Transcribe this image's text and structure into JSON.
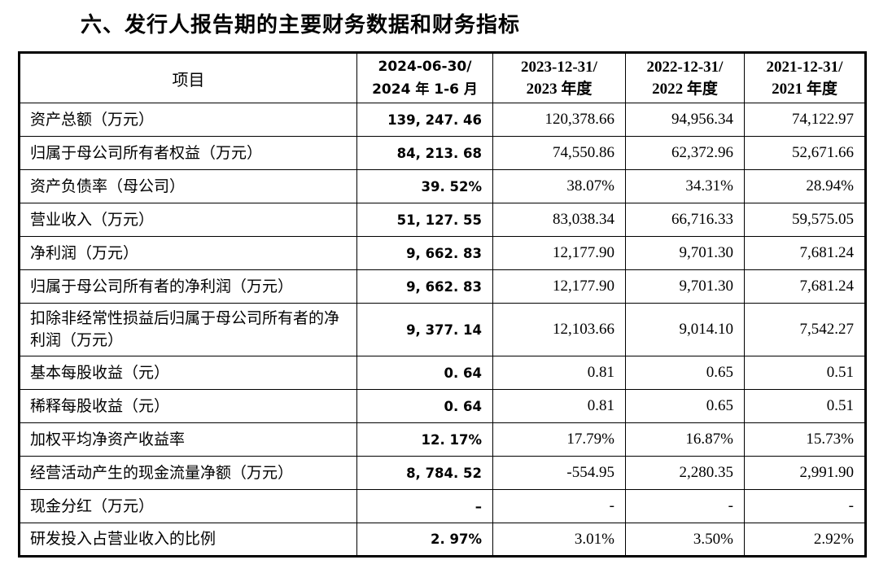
{
  "page": {
    "title": "六、发行人报告期的主要财务数据和财务指标"
  },
  "colors": {
    "text": "#000000",
    "border": "#000000",
    "background": "#ffffff"
  },
  "table": {
    "header": {
      "item_label": "项目",
      "periods": [
        {
          "line1": "2024-06-30/",
          "line2": "2024 年 1-6 月"
        },
        {
          "line1": "2023-12-31/",
          "line2": "2023 年度"
        },
        {
          "line1": "2022-12-31/",
          "line2": "2022 年度"
        },
        {
          "line1": "2021-12-31/",
          "line2": "2021 年度"
        }
      ]
    },
    "rows": [
      {
        "item": "资产总额（万元）",
        "v2024": "139, 247. 46",
        "v2023": "120,378.66",
        "v2022": "94,956.34",
        "v2021": "74,122.97"
      },
      {
        "item": "归属于母公司所有者权益（万元）",
        "v2024": "84, 213. 68",
        "v2023": "74,550.86",
        "v2022": "62,372.96",
        "v2021": "52,671.66"
      },
      {
        "item": "资产负债率（母公司）",
        "v2024": "39. 52%",
        "v2023": "38.07%",
        "v2022": "34.31%",
        "v2021": "28.94%"
      },
      {
        "item": "营业收入（万元）",
        "v2024": "51, 127. 55",
        "v2023": "83,038.34",
        "v2022": "66,716.33",
        "v2021": "59,575.05"
      },
      {
        "item": "净利润（万元）",
        "v2024": "9, 662. 83",
        "v2023": "12,177.90",
        "v2022": "9,701.30",
        "v2021": "7,681.24"
      },
      {
        "item": "归属于母公司所有者的净利润（万元）",
        "v2024": "9, 662. 83",
        "v2023": "12,177.90",
        "v2022": "9,701.30",
        "v2021": "7,681.24"
      },
      {
        "item": "扣除非经常性损益后归属于母公司所有者的净利润（万元）",
        "v2024": "9, 377. 14",
        "v2023": "12,103.66",
        "v2022": "9,014.10",
        "v2021": "7,542.27"
      },
      {
        "item": "基本每股收益（元）",
        "v2024": "0. 64",
        "v2023": "0.81",
        "v2022": "0.65",
        "v2021": "0.51"
      },
      {
        "item": "稀释每股收益（元）",
        "v2024": "0. 64",
        "v2023": "0.81",
        "v2022": "0.65",
        "v2021": "0.51"
      },
      {
        "item": "加权平均净资产收益率",
        "v2024": "12. 17%",
        "v2023": "17.79%",
        "v2022": "16.87%",
        "v2021": "15.73%"
      },
      {
        "item": "经营活动产生的现金流量净额（万元）",
        "v2024": "8, 784. 52",
        "v2023": "-554.95",
        "v2022": "2,280.35",
        "v2021": "2,991.90"
      },
      {
        "item": "现金分红（万元）",
        "v2024": "–",
        "v2023": "-",
        "v2022": "-",
        "v2021": "-"
      },
      {
        "item": "研发投入占营业收入的比例",
        "v2024": "2. 97%",
        "v2023": "3.01%",
        "v2022": "3.50%",
        "v2021": "2.92%"
      }
    ]
  }
}
